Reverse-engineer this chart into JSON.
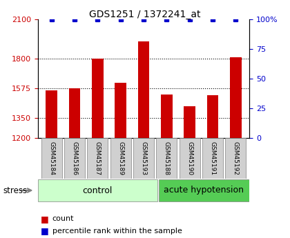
{
  "title": "GDS1251 / 1372241_at",
  "samples": [
    "GSM45184",
    "GSM45186",
    "GSM45187",
    "GSM45189",
    "GSM45193",
    "GSM45188",
    "GSM45190",
    "GSM45191",
    "GSM45192"
  ],
  "counts": [
    1560,
    1575,
    1800,
    1620,
    1930,
    1530,
    1440,
    1525,
    1810
  ],
  "percentiles": [
    100,
    100,
    100,
    100,
    100,
    100,
    100,
    100,
    100
  ],
  "bar_color": "#cc0000",
  "dot_color": "#0000cc",
  "ylim_left": [
    1200,
    2100
  ],
  "ylim_right": [
    0,
    100
  ],
  "yticks_left": [
    1200,
    1350,
    1575,
    1800,
    2100
  ],
  "yticks_right": [
    0,
    25,
    50,
    75,
    100
  ],
  "groups": [
    {
      "label": "control",
      "start": 0,
      "end": 5,
      "color": "#ccffcc"
    },
    {
      "label": "acute hypotension",
      "start": 5,
      "end": 9,
      "color": "#66dd66"
    }
  ],
  "group_label_color": "black",
  "stress_label": "stress",
  "background_color": "#ffffff",
  "legend_count_color": "#cc0000",
  "legend_pct_color": "#0000cc",
  "xlabel_area_color": "#cccccc",
  "dotted_grid_color": "#333333"
}
